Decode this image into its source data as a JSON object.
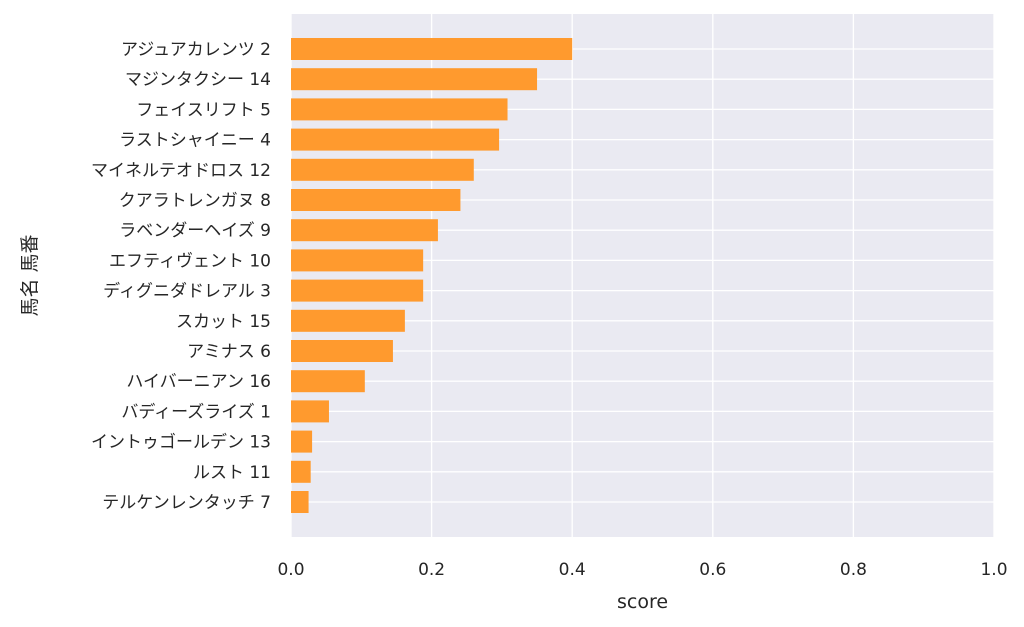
{
  "chart_data": {
    "type": "bar",
    "orientation": "horizontal",
    "xlabel": "score",
    "ylabel": "馬名 馬番",
    "xlim": [
      0.0,
      1.0
    ],
    "xticks": [
      "0.0",
      "0.2",
      "0.4",
      "0.6",
      "0.8",
      "1.0"
    ],
    "grid": true,
    "bar_color": "#FF9A2E",
    "background_color": "#EAEAF2",
    "categories": [
      "アジュアカレンツ 2",
      "マジンタクシー 14",
      "フェイスリフト 5",
      "ラストシャイニー 4",
      "マイネルテオドロス 12",
      "クアラトレンガヌ 8",
      "ラベンダーヘイズ 9",
      "エフティヴェント 10",
      "ディグニダドレアル 3",
      "スカット 15",
      "アミナス 6",
      "ハイバーニアン 16",
      "バディーズライズ 1",
      "イントゥゴールデン 13",
      "ルスト 11",
      "テルケンレンタッチ 7"
    ],
    "values": [
      0.4,
      0.35,
      0.308,
      0.296,
      0.26,
      0.241,
      0.209,
      0.188,
      0.188,
      0.162,
      0.145,
      0.105,
      0.054,
      0.03,
      0.028,
      0.025
    ]
  }
}
